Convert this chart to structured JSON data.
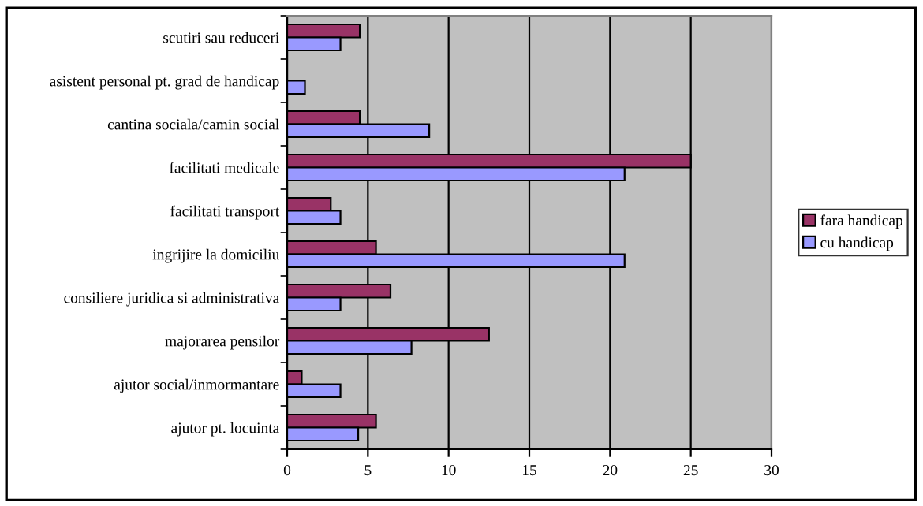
{
  "chart_data": {
    "type": "bar",
    "orientation": "horizontal",
    "categories": [
      "scutiri sau reduceri",
      "asistent personal pt. grad de handicap",
      "cantina sociala/camin social",
      "facilitati medicale",
      "facilitati transport",
      "ingrijire la domiciliu",
      "consiliere juridica si administrativa",
      "majorarea pensilor",
      "ajutor social/inmormantare",
      "ajutor pt. locuinta"
    ],
    "series": [
      {
        "name": "fara handicap",
        "color": "#993366",
        "values": [
          4.5,
          null,
          4.5,
          25,
          2.7,
          5.5,
          6.4,
          12.5,
          0.9,
          5.5
        ]
      },
      {
        "name": "cu handicap",
        "color": "#9999ff",
        "values": [
          3.3,
          1.1,
          8.8,
          20.9,
          3.3,
          20.9,
          3.3,
          7.7,
          3.3,
          4.4
        ]
      }
    ],
    "xlim": [
      0,
      30
    ],
    "xticks": [
      0,
      5,
      10,
      15,
      20,
      25,
      30
    ],
    "grid": "x",
    "legend": "right"
  }
}
